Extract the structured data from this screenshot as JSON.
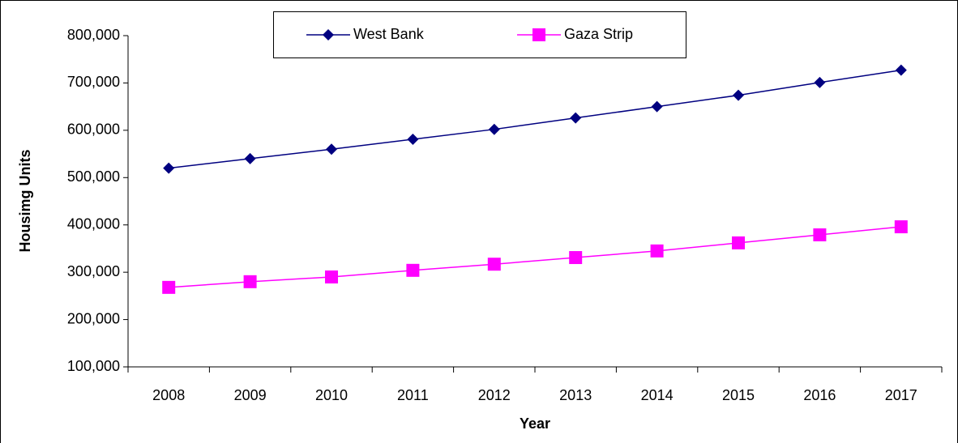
{
  "chart_data": {
    "type": "line",
    "x_label": "Year",
    "y_label": "Housimg Units",
    "categories": [
      "2008",
      "2009",
      "2010",
      "2011",
      "2012",
      "2013",
      "2014",
      "2015",
      "2016",
      "2017"
    ],
    "series": [
      {
        "name": "West Bank",
        "color": "#000080",
        "marker": "diamond",
        "values": [
          520000,
          540000,
          560000,
          581000,
          602000,
          626000,
          650000,
          674000,
          701000,
          727000
        ]
      },
      {
        "name": "Gaza Strip",
        "color": "#ff00ff",
        "marker": "square",
        "values": [
          268000,
          280000,
          290000,
          304000,
          317000,
          331000,
          345000,
          362000,
          379000,
          396000
        ]
      }
    ],
    "ylim": [
      100000,
      800000
    ],
    "yticks": [
      {
        "value": 100000,
        "label": "100,000"
      },
      {
        "value": 200000,
        "label": "200,000"
      },
      {
        "value": 300000,
        "label": "300,000"
      },
      {
        "value": 400000,
        "label": "400,000"
      },
      {
        "value": 500000,
        "label": "500,000"
      },
      {
        "value": 600000,
        "label": "600,000"
      },
      {
        "value": 700000,
        "label": "700,000"
      },
      {
        "value": 800000,
        "label": "800,000"
      }
    ],
    "legend": "top"
  }
}
